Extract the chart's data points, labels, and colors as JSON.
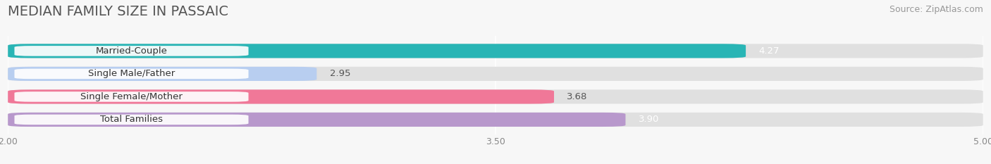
{
  "title": "MEDIAN FAMILY SIZE IN PASSAIC",
  "source": "Source: ZipAtlas.com",
  "categories": [
    "Married-Couple",
    "Single Male/Father",
    "Single Female/Mother",
    "Total Families"
  ],
  "values": [
    4.27,
    2.95,
    3.68,
    3.9
  ],
  "bar_colors": [
    "#29b5b5",
    "#b8cef0",
    "#f07898",
    "#b898cc"
  ],
  "value_colors": [
    "white",
    "#555555",
    "#555555",
    "white"
  ],
  "xlim": [
    2.0,
    5.0
  ],
  "xticks": [
    2.0,
    3.5,
    5.0
  ],
  "background_color": "#f7f7f7",
  "bar_background_color": "#e0e0e0",
  "title_fontsize": 14,
  "source_fontsize": 9,
  "label_fontsize": 9.5,
  "value_fontsize": 9.5,
  "bar_height": 0.62
}
